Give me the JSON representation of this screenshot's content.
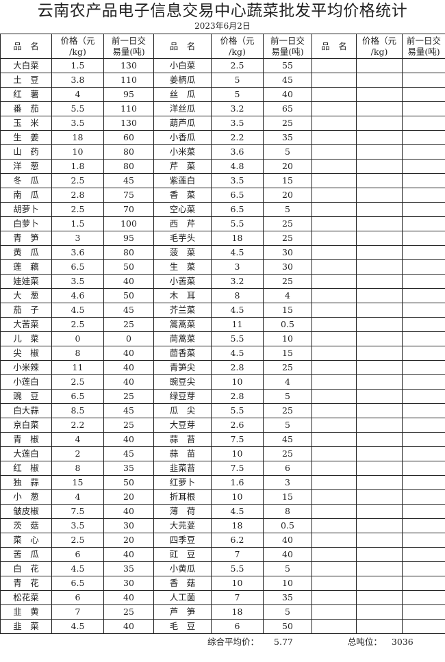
{
  "title": "云南农产品电子信息交易中心蔬菜批发平均价格统计",
  "date": "2023年6月2日",
  "headers": {
    "name": "品　名",
    "price": "价格（元\n/kg)",
    "volume": "前一日交\n易量(吨)"
  },
  "rows": [
    [
      "大白菜",
      "1.5",
      "130",
      "小白菜",
      "2.5",
      "55"
    ],
    [
      "土　豆",
      "3.8",
      "110",
      "姜柄瓜",
      "5",
      "45"
    ],
    [
      "红　薯",
      "4",
      "95",
      "丝　瓜",
      "5",
      "40"
    ],
    [
      "番　茄",
      "5.5",
      "110",
      "洋丝瓜",
      "3.2",
      "65"
    ],
    [
      "玉　米",
      "3.5",
      "130",
      "葫芦瓜",
      "3.5",
      "25"
    ],
    [
      "生　姜",
      "18",
      "60",
      "小香瓜",
      "2.2",
      "35"
    ],
    [
      "山　药",
      "10",
      "80",
      "小米菜",
      "3.6",
      "5"
    ],
    [
      "洋　葱",
      "1.8",
      "80",
      "芹　菜",
      "4.8",
      "20"
    ],
    [
      "冬　瓜",
      "2.5",
      "45",
      "紫莲白",
      "3.5",
      "15"
    ],
    [
      "南　瓜",
      "2.8",
      "75",
      "香　菜",
      "6.5",
      "20"
    ],
    [
      "胡萝卜",
      "2.5",
      "70",
      "空心菜",
      "6.5",
      "5"
    ],
    [
      "白萝卜",
      "1.5",
      "100",
      "西　芹",
      "5.5",
      "25"
    ],
    [
      "青　笋",
      "3",
      "95",
      "毛芋头",
      "18",
      "25"
    ],
    [
      "黄　瓜",
      "3.6",
      "80",
      "菠　菜",
      "4.5",
      "30"
    ],
    [
      "莲　藕",
      "6.5",
      "50",
      "生　菜",
      "3",
      "30"
    ],
    [
      "娃娃菜",
      "3.5",
      "40",
      "小苦菜",
      "3.2",
      "25"
    ],
    [
      "大　葱",
      "4.6",
      "50",
      "木　耳",
      "8",
      "4"
    ],
    [
      "茄　子",
      "4.5",
      "45",
      "芥兰菜",
      "4.5",
      "15"
    ],
    [
      "大苦菜",
      "2.5",
      "25",
      "篙蒿菜",
      "11",
      "0.5"
    ],
    [
      "儿　菜",
      "0",
      "0",
      "茼蒿菜",
      "5.5",
      "10"
    ],
    [
      "尖　椒",
      "8",
      "40",
      "茴香菜",
      "4.5",
      "15"
    ],
    [
      "小米辣",
      "11",
      "40",
      "青笋尖",
      "2.8",
      "25"
    ],
    [
      "小莲白",
      "2.5",
      "40",
      "豌豆尖",
      "10",
      "4"
    ],
    [
      "豌　豆",
      "6.5",
      "25",
      "绿豆芽",
      "2.8",
      "5"
    ],
    [
      "白大蒜",
      "8.5",
      "45",
      "瓜　尖",
      "5.5",
      "25"
    ],
    [
      "京白菜",
      "2.2",
      "25",
      "大豆芽",
      "2.6",
      "5"
    ],
    [
      "青　椒",
      "4",
      "40",
      "蒜　苔",
      "7.5",
      "45"
    ],
    [
      "大莲白",
      "2",
      "45",
      "蒜　苗",
      "10",
      "25"
    ],
    [
      "红　椒",
      "8",
      "35",
      "韭菜苔",
      "7.5",
      "6"
    ],
    [
      "独　蒜",
      "15",
      "50",
      "红萝卜",
      "1.6",
      "3"
    ],
    [
      "小　葱",
      "4",
      "20",
      "折耳根",
      "10",
      "15"
    ],
    [
      "皱皮椒",
      "7.5",
      "40",
      "薄　荷",
      "4.5",
      "8"
    ],
    [
      "茨　菇",
      "3.5",
      "30",
      "大芫荽",
      "18",
      "0.5"
    ],
    [
      "菜　心",
      "2.5",
      "20",
      "四季豆",
      "6.2",
      "40"
    ],
    [
      "苦　瓜",
      "6",
      "40",
      "豇　豆",
      "7",
      "40"
    ],
    [
      "白　花",
      "4.5",
      "35",
      "小黄瓜",
      "5.5",
      "5"
    ],
    [
      "青　花",
      "6.5",
      "30",
      "香　菇",
      "10",
      "10"
    ],
    [
      "松花菜",
      "6",
      "40",
      "人工菌",
      "7",
      "35"
    ],
    [
      "韭　黄",
      "7",
      "25",
      "芦　笋",
      "18",
      "5"
    ],
    [
      "韭　菜",
      "4.5",
      "40",
      "毛　豆",
      "6",
      "50"
    ]
  ],
  "footer": {
    "avg_label": "综合平均价：",
    "avg_value": "5.77",
    "total_label": "总吨位：",
    "total_value": "3036"
  }
}
